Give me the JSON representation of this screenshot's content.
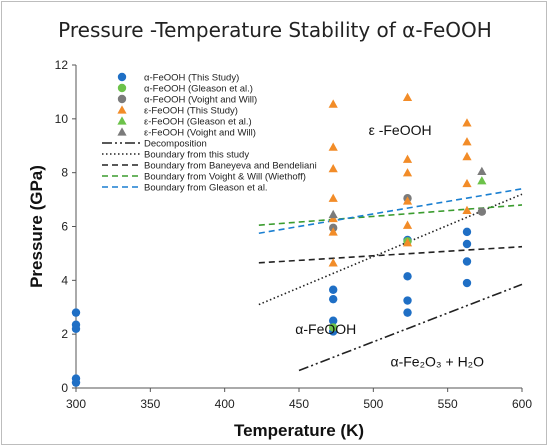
{
  "chart_data": {
    "type": "scatter",
    "title": "Pressure -Temperature Stability of α-FeOOH",
    "xlabel": "Temperature (K)",
    "ylabel": "Pressure (GPa)",
    "xlim": [
      300,
      600
    ],
    "ylim": [
      0,
      12
    ],
    "xticks": [
      300,
      350,
      400,
      450,
      500,
      550,
      600
    ],
    "yticks": [
      0,
      2,
      4,
      6,
      8,
      10,
      12
    ],
    "grid": false,
    "legend_position": "top-left",
    "series": [
      {
        "name": "α-FeOOH (This Study)",
        "marker": "circle",
        "color": "#1f6fc5",
        "points": [
          [
            300,
            0.2
          ],
          [
            300,
            0.35
          ],
          [
            300,
            2.2
          ],
          [
            300,
            2.35
          ],
          [
            300,
            2.8
          ],
          [
            473,
            2.1
          ],
          [
            473,
            2.5
          ],
          [
            473,
            3.3
          ],
          [
            473,
            3.65
          ],
          [
            523,
            2.8
          ],
          [
            523,
            3.25
          ],
          [
            523,
            4.15
          ],
          [
            523,
            5.5
          ],
          [
            563,
            3.9
          ],
          [
            563,
            4.7
          ],
          [
            563,
            5.35
          ],
          [
            563,
            5.8
          ]
        ]
      },
      {
        "name": "α-FeOOH (Gleason et al.)",
        "marker": "circle",
        "color": "#6cc24a",
        "points": [
          [
            473,
            2.25
          ],
          [
            523,
            5.45
          ]
        ]
      },
      {
        "name": "α-FeOOH (Voight and Will)",
        "marker": "circle",
        "color": "#7b7b7b",
        "points": [
          [
            473,
            5.95
          ],
          [
            523,
            7.05
          ],
          [
            573,
            6.55
          ]
        ]
      },
      {
        "name": "ε-FeOOH (This Study)",
        "marker": "triangle",
        "color": "#f28c28",
        "points": [
          [
            473,
            4.65
          ],
          [
            473,
            5.8
          ],
          [
            473,
            6.3
          ],
          [
            473,
            7.05
          ],
          [
            473,
            8.15
          ],
          [
            473,
            8.95
          ],
          [
            473,
            10.55
          ],
          [
            523,
            5.4
          ],
          [
            523,
            6.05
          ],
          [
            523,
            6.95
          ],
          [
            523,
            8.0
          ],
          [
            523,
            8.5
          ],
          [
            523,
            10.8
          ],
          [
            563,
            6.6
          ],
          [
            563,
            7.6
          ],
          [
            563,
            8.6
          ],
          [
            563,
            9.15
          ],
          [
            563,
            9.85
          ]
        ]
      },
      {
        "name": "ε-FeOOH (Gleason et al.)",
        "marker": "triangle",
        "color": "#6cc24a",
        "points": [
          [
            573,
            7.7
          ]
        ]
      },
      {
        "name": "ε-FeOOH (Voight and Will)",
        "marker": "triangle",
        "color": "#7b7b7b",
        "points": [
          [
            473,
            6.45
          ],
          [
            573,
            8.05
          ]
        ]
      }
    ],
    "lines": [
      {
        "name": "Decomposition",
        "style": "dashdotdot",
        "color": "#222222",
        "points": [
          [
            450,
            0.65
          ],
          [
            600,
            3.85
          ]
        ]
      },
      {
        "name": "Boundary from this study",
        "style": "dotted",
        "color": "#222222",
        "points": [
          [
            423,
            3.1
          ],
          [
            600,
            7.2
          ]
        ]
      },
      {
        "name": "Boundary from Baneyeva and Bendeliani",
        "style": "dashed",
        "color": "#222222",
        "points": [
          [
            423,
            4.65
          ],
          [
            600,
            5.25
          ]
        ]
      },
      {
        "name": "Boundary from Voight & Will (Wiethoff)",
        "style": "dashed",
        "color": "#3b9c2f",
        "points": [
          [
            423,
            6.05
          ],
          [
            600,
            6.8
          ]
        ]
      },
      {
        "name": "Boundary from Gleason et al.",
        "style": "dashed",
        "color": "#1a7fd1",
        "points": [
          [
            423,
            5.75
          ],
          [
            600,
            7.4
          ]
        ]
      }
    ],
    "annotations": [
      {
        "text": "ε -FeOOH",
        "x": 518,
        "y": 9.4
      },
      {
        "text": "α-FeOOH",
        "x": 468,
        "y": 2.0
      },
      {
        "text": "α-Fe₂O₃ + H₂O",
        "x": 543,
        "y": 0.8
      }
    ]
  }
}
